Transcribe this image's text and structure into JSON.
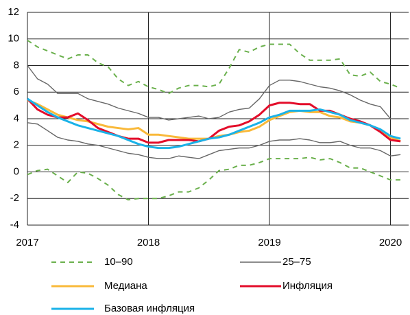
{
  "chart_data": {
    "type": "line",
    "x": [
      2017,
      2017.083,
      2017.167,
      2017.25,
      2017.333,
      2017.417,
      2017.5,
      2017.583,
      2017.667,
      2017.75,
      2017.833,
      2017.917,
      2018,
      2018.083,
      2018.167,
      2018.25,
      2018.333,
      2018.417,
      2018.5,
      2018.583,
      2018.667,
      2018.75,
      2018.833,
      2018.917,
      2019,
      2019.083,
      2019.167,
      2019.25,
      2019.333,
      2019.417,
      2019.5,
      2019.583,
      2019.667,
      2019.75,
      2019.833,
      2019.917,
      2020,
      2020.083
    ],
    "series": [
      {
        "name": "10–90",
        "color": "#6ab04c",
        "dashed": true,
        "values": [
          9.9,
          9.4,
          9.1,
          8.8,
          8.5,
          8.8,
          8.8,
          8.2,
          7.9,
          7.0,
          6.5,
          6.8,
          6.4,
          6.2,
          5.9,
          6.3,
          6.5,
          6.5,
          6.4,
          6.6,
          7.8,
          9.2,
          9.0,
          9.4,
          9.6,
          9.6,
          9.6,
          8.9,
          8.4,
          8.4,
          8.4,
          8.5,
          7.3,
          7.2,
          7.5,
          6.8,
          6.6,
          6.3
        ],
        "lower": [
          -0.2,
          0.1,
          0.2,
          -0.3,
          -0.8,
          0.0,
          -0.1,
          -0.5,
          -1.0,
          -1.7,
          -2.1,
          -2.0,
          -2.0,
          -2.0,
          -1.8,
          -1.5,
          -1.5,
          -1.2,
          -0.6,
          0.1,
          0.2,
          0.5,
          0.5,
          0.7,
          1.0,
          1.0,
          1.0,
          1.0,
          1.1,
          0.9,
          1.0,
          0.7,
          0.3,
          0.3,
          0.0,
          -0.3,
          -0.6,
          -0.6
        ]
      },
      {
        "name": "25–75",
        "color": "#666666",
        "values": [
          8.0,
          7.0,
          6.6,
          5.9,
          5.9,
          5.9,
          5.5,
          5.3,
          5.1,
          4.8,
          4.6,
          4.4,
          4.1,
          4.1,
          3.9,
          4.0,
          4.1,
          4.2,
          4.0,
          4.1,
          4.5,
          4.7,
          4.8,
          5.5,
          6.5,
          6.9,
          6.9,
          6.8,
          6.6,
          6.4,
          6.3,
          6.1,
          5.8,
          5.4,
          5.1,
          4.9,
          4.0,
          4.0
        ],
        "lower": [
          3.7,
          3.6,
          3.1,
          2.6,
          2.4,
          2.3,
          2.1,
          2.0,
          1.8,
          1.6,
          1.4,
          1.3,
          1.1,
          1.0,
          1.0,
          1.2,
          1.1,
          1.0,
          1.3,
          1.6,
          1.7,
          1.8,
          1.8,
          2.0,
          2.3,
          2.4,
          2.4,
          2.5,
          2.4,
          2.2,
          2.2,
          2.3,
          2.0,
          1.8,
          1.8,
          1.6,
          1.2,
          1.3
        ]
      },
      {
        "name": "Медиана",
        "color": "#f9b93a",
        "values": [
          5.4,
          5.1,
          4.7,
          4.3,
          4.1,
          3.9,
          3.8,
          3.6,
          3.4,
          3.3,
          3.2,
          3.3,
          2.8,
          2.8,
          2.7,
          2.6,
          2.5,
          2.5,
          2.5,
          2.7,
          2.8,
          3.0,
          3.1,
          3.4,
          3.9,
          4.2,
          4.5,
          4.6,
          4.5,
          4.5,
          4.2,
          4.1,
          3.8,
          3.7,
          3.5,
          3.1,
          2.6,
          2.3
        ]
      },
      {
        "name": "Инфляция",
        "color": "#e30d2a",
        "values": [
          5.5,
          4.7,
          4.3,
          4.1,
          4.1,
          4.4,
          3.9,
          3.3,
          3.0,
          2.7,
          2.5,
          2.5,
          2.2,
          2.2,
          2.4,
          2.4,
          2.4,
          2.3,
          2.5,
          3.1,
          3.4,
          3.5,
          3.8,
          4.3,
          5.0,
          5.2,
          5.2,
          5.1,
          5.1,
          4.6,
          4.6,
          4.3,
          4.0,
          3.8,
          3.5,
          3.0,
          2.4,
          2.3
        ]
      },
      {
        "name": "Базовая инфляция",
        "color": "#1ab2e8",
        "values": [
          5.5,
          5.0,
          4.5,
          4.1,
          3.8,
          3.5,
          3.3,
          3.1,
          2.9,
          2.7,
          2.4,
          2.1,
          1.9,
          1.8,
          1.8,
          1.9,
          2.1,
          2.3,
          2.5,
          2.6,
          2.8,
          3.1,
          3.4,
          3.7,
          4.1,
          4.3,
          4.6,
          4.6,
          4.6,
          4.7,
          4.5,
          4.3,
          3.9,
          3.7,
          3.5,
          3.2,
          2.7,
          2.5
        ]
      }
    ],
    "xlim": [
      2017,
      2020.15
    ],
    "xticks": [
      2017,
      2018,
      2019,
      2020
    ],
    "ylim": [
      -4,
      12
    ],
    "yticks": [
      -4,
      -2,
      0,
      2,
      4,
      6,
      8,
      10,
      12
    ],
    "grid": true
  }
}
